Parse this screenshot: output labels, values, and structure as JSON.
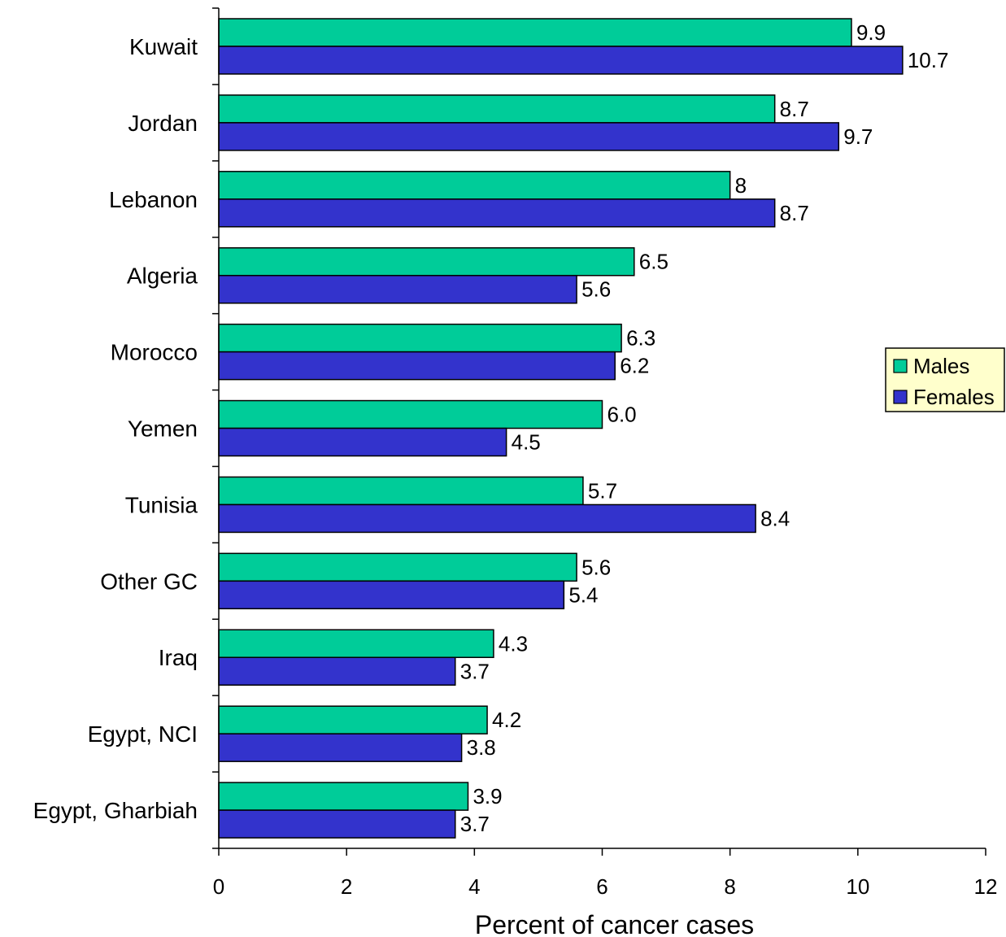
{
  "chart_data": {
    "type": "bar",
    "orientation": "horizontal",
    "categories": [
      "Kuwait",
      "Jordan",
      "Lebanon",
      "Algeria",
      "Morocco",
      "Yemen",
      "Tunisia",
      "Other GC",
      "Iraq",
      "Egypt, NCI",
      "Egypt, Gharbiah"
    ],
    "series": [
      {
        "name": "Males",
        "color": "#00CC99",
        "values": [
          9.9,
          8.7,
          8,
          6.5,
          6.3,
          6.0,
          5.7,
          5.6,
          4.3,
          4.2,
          3.9
        ],
        "labels": [
          "9.9",
          "8.7",
          "8",
          "6.5",
          "6.3",
          "6.0",
          "5.7",
          "5.6",
          "4.3",
          "4.2",
          "3.9"
        ]
      },
      {
        "name": "Females",
        "color": "#3333CC",
        "values": [
          10.7,
          9.7,
          8.7,
          5.6,
          6.2,
          4.5,
          8.4,
          5.4,
          3.7,
          3.8,
          3.7
        ],
        "labels": [
          "10.7",
          "9.7",
          "8.7",
          "5.6",
          "6.2",
          "4.5",
          "8.4",
          "5.4",
          "3.7",
          "3.8",
          "3.7"
        ]
      }
    ],
    "xlabel": "Percent of cancer cases",
    "ylabel": "",
    "title": "",
    "xlim": [
      0,
      12
    ],
    "xticks": [
      "0",
      "2",
      "4",
      "6",
      "8",
      "10",
      "12"
    ],
    "grid": false,
    "legend_position": "right",
    "legend_background": "#FFFFCC"
  }
}
